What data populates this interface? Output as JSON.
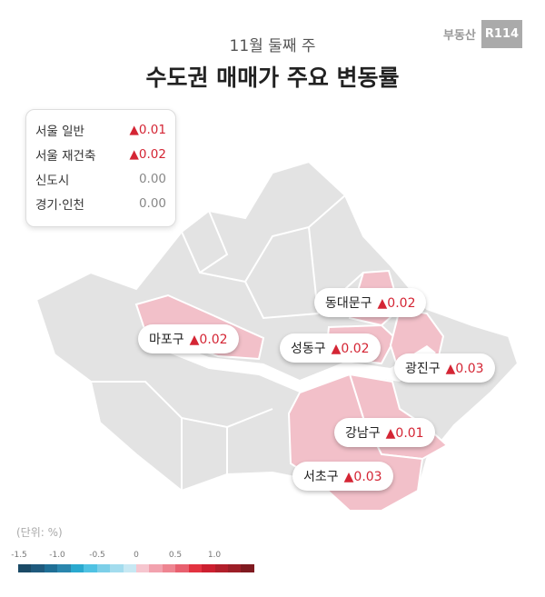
{
  "header": {
    "subtitle": "11월 둘째 주",
    "title": "수도권 매매가 주요 변동률",
    "logo_text": "부동산",
    "logo_badge": "R114"
  },
  "summary": [
    {
      "label": "서울 일반",
      "value": "▲0.01",
      "dir": "up"
    },
    {
      "label": "서울 재건축",
      "value": "▲0.02",
      "dir": "up"
    },
    {
      "label": "신도시",
      "value": "0.00",
      "dir": "flat"
    },
    {
      "label": "경기·인천",
      "value": "0.00",
      "dir": "flat"
    }
  ],
  "districts": [
    {
      "name": "동대문구",
      "value": "▲0.02"
    },
    {
      "name": "마포구",
      "value": "▲0.02"
    },
    {
      "name": "성동구",
      "value": "▲0.02"
    },
    {
      "name": "광진구",
      "value": "▲0.03"
    },
    {
      "name": "강남구",
      "value": "▲0.01"
    },
    {
      "name": "서초구",
      "value": "▲0.03"
    }
  ],
  "legend": {
    "unit": "(단위: %)",
    "ticks": [
      "-1.5",
      "-1.0",
      "-0.5",
      "0",
      "0.5",
      "1.0"
    ],
    "colors": [
      "#1b4a66",
      "#1f5a7d",
      "#1f6f96",
      "#2a86ad",
      "#2aa9cf",
      "#4fc2e3",
      "#7ccfe8",
      "#a3dcee",
      "#c7e8f3",
      "#f6c6cf",
      "#f2a2ae",
      "#ee8591",
      "#e8606f",
      "#e33240",
      "#cc1f2f",
      "#b21f2b",
      "#9c1e27",
      "#7f1a20"
    ]
  },
  "colors": {
    "base": "#e3e3e3",
    "highlight": "#f2c0c9",
    "river": "#ffffff",
    "up": "#d42534"
  }
}
